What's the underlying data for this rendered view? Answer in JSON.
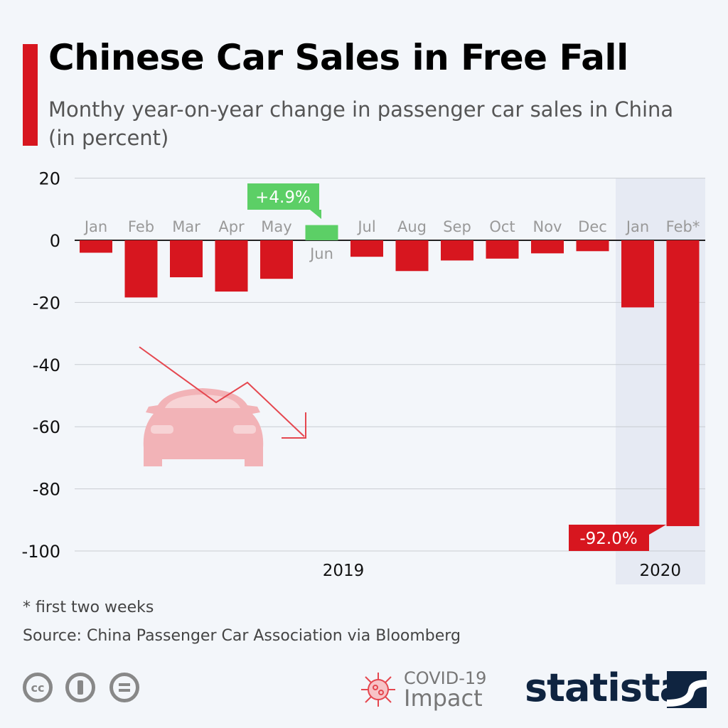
{
  "title": "Chinese Car Sales in Free Fall",
  "subtitle": "Monthy year-on-year change in passenger car sales in China (in percent)",
  "chart_data": {
    "type": "bar",
    "categories": [
      "Jan",
      "Feb",
      "Mar",
      "Apr",
      "May",
      "Jun",
      "Jul",
      "Aug",
      "Sep",
      "Oct",
      "Nov",
      "Dec",
      "Jan",
      "Feb*"
    ],
    "groups": [
      {
        "label": "2019",
        "from": 0,
        "to": 11
      },
      {
        "label": "2020",
        "from": 12,
        "to": 13
      }
    ],
    "values": [
      -4.0,
      -18.4,
      -11.9,
      -16.5,
      -12.4,
      4.9,
      -5.3,
      -9.9,
      -6.5,
      -5.9,
      -4.2,
      -3.5,
      -21.6,
      -92.0
    ],
    "ylim": [
      -100,
      20
    ],
    "yticks": [
      20,
      0,
      -20,
      -40,
      -60,
      -80,
      -100
    ],
    "grid": true,
    "annotations": [
      {
        "index": 5,
        "text": "+4.9%",
        "color": "#5ccf66"
      },
      {
        "index": 13,
        "text": "-92.0%",
        "color": "#d7161f"
      }
    ],
    "colors": {
      "negative": "#d7161f",
      "positive": "#5ccf66",
      "highlight_bg": "#e6eaf3"
    }
  },
  "footnote": "* first two weeks",
  "source": "Source: China Passenger Car Association via Bloomberg",
  "license_icons": [
    "cc-icon",
    "attribution-icon",
    "no-derivatives-icon"
  ],
  "cc_text": "cc",
  "covid": {
    "line1": "COVID-19",
    "line2": "Impact"
  },
  "brand": "statista"
}
